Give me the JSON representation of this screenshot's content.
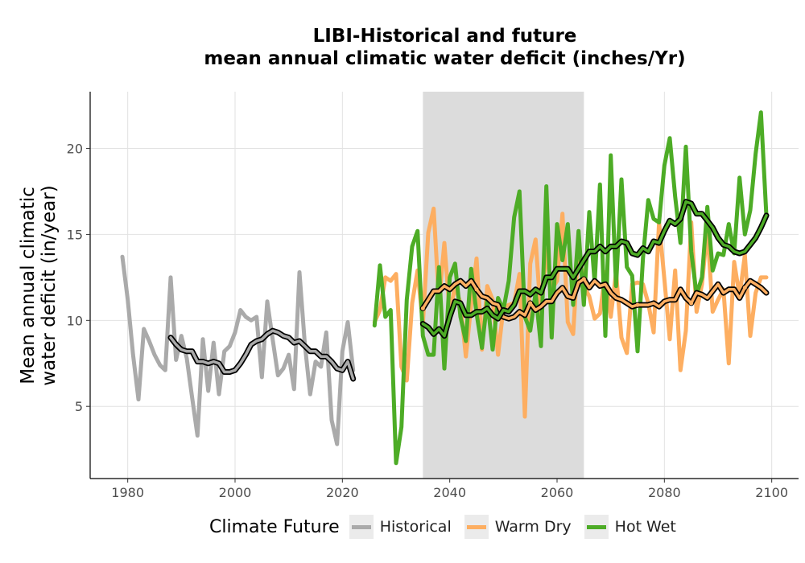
{
  "chart_data": {
    "type": "line",
    "title": [
      "LIBI-Historical and future",
      "mean annual climatic water deficit (inches/Yr)"
    ],
    "ylabel": "Mean annual climatic water deficit (in/year)",
    "ylabel_lines": [
      "Mean annual climatic",
      "water deficit (in/year)"
    ],
    "xlim": [
      1973,
      2105
    ],
    "ylim": [
      0.8,
      23.3
    ],
    "xticks": [
      1980,
      2000,
      2020,
      2040,
      2060,
      2080,
      2100
    ],
    "yticks": [
      5,
      10,
      15,
      20
    ],
    "grid": true,
    "reference_period": [
      2035,
      2065
    ],
    "legend": {
      "title": "Climate Future",
      "placement": "bottom"
    },
    "series": [
      {
        "name": "Historical",
        "color": "#aaaaaa",
        "x": [
          1979,
          1980,
          1981,
          1982,
          1983,
          1984,
          1985,
          1986,
          1987,
          1988,
          1989,
          1990,
          1991,
          1992,
          1993,
          1994,
          1995,
          1996,
          1997,
          1998,
          1999,
          2000,
          2001,
          2002,
          2003,
          2004,
          2005,
          2006,
          2007,
          2008,
          2009,
          2010,
          2011,
          2012,
          2013,
          2014,
          2015,
          2016,
          2017,
          2018,
          2019,
          2020,
          2021,
          2022
        ],
        "y": [
          13.7,
          11.2,
          8.0,
          5.4,
          9.5,
          8.8,
          8.0,
          7.4,
          7.1,
          12.5,
          7.7,
          9.1,
          7.8,
          5.5,
          3.3,
          8.9,
          5.9,
          8.7,
          5.7,
          8.2,
          8.5,
          9.3,
          10.6,
          10.2,
          10.0,
          10.2,
          6.7,
          11.1,
          8.9,
          6.8,
          7.2,
          8.0,
          6.0,
          12.8,
          8.6,
          5.7,
          7.6,
          7.3,
          9.3,
          4.2,
          2.8,
          8.2,
          9.9,
          7.1
        ],
        "smooth_x": [
          1988,
          1989,
          1990,
          1991,
          1992,
          1993,
          1994,
          1995,
          1996,
          1997,
          1998,
          1999,
          2000,
          2001,
          2002,
          2003,
          2004,
          2005,
          2006,
          2007,
          2008,
          2009,
          2010,
          2011,
          2012,
          2013,
          2014,
          2015,
          2016,
          2017,
          2018,
          2019,
          2020,
          2021,
          2022
        ],
        "smooth_y": [
          9.0,
          8.6,
          8.3,
          8.2,
          8.2,
          7.6,
          7.6,
          7.5,
          7.6,
          7.5,
          7.0,
          7.0,
          7.1,
          7.5,
          8.0,
          8.6,
          8.8,
          8.9,
          9.2,
          9.4,
          9.3,
          9.1,
          9.0,
          8.7,
          8.8,
          8.5,
          8.2,
          8.2,
          7.9,
          7.9,
          7.6,
          7.2,
          7.1,
          7.6,
          6.6
        ]
      },
      {
        "name": "Warm Dry",
        "color": "#fdae61",
        "x": [
          2026,
          2027,
          2028,
          2029,
          2030,
          2031,
          2032,
          2033,
          2034,
          2035,
          2036,
          2037,
          2038,
          2039,
          2040,
          2041,
          2042,
          2043,
          2044,
          2045,
          2046,
          2047,
          2048,
          2049,
          2050,
          2051,
          2052,
          2053,
          2054,
          2055,
          2056,
          2057,
          2058,
          2059,
          2060,
          2061,
          2062,
          2063,
          2064,
          2065,
          2066,
          2067,
          2068,
          2069,
          2070,
          2071,
          2072,
          2073,
          2074,
          2075,
          2076,
          2077,
          2078,
          2079,
          2080,
          2081,
          2082,
          2083,
          2084,
          2085,
          2086,
          2087,
          2088,
          2089,
          2090,
          2091,
          2092,
          2093,
          2094,
          2095,
          2096,
          2097,
          2098,
          2099
        ],
        "y": [
          9.9,
          10.6,
          12.5,
          12.3,
          12.7,
          7.3,
          6.5,
          11.0,
          12.9,
          9.8,
          15.1,
          16.5,
          11.1,
          14.5,
          10.4,
          12.0,
          11.0,
          7.9,
          10.9,
          13.6,
          8.3,
          12.0,
          11.2,
          8.0,
          10.7,
          10.9,
          11.0,
          12.7,
          4.4,
          13.3,
          14.7,
          10.2,
          14.1,
          11.8,
          12.3,
          16.2,
          9.9,
          9.2,
          14.4,
          12.0,
          11.4,
          10.1,
          10.4,
          12.8,
          10.2,
          12.8,
          9.0,
          8.1,
          12.1,
          12.2,
          12.1,
          11.0,
          9.3,
          15.7,
          12.4,
          8.9,
          12.9,
          7.1,
          9.4,
          15.7,
          10.5,
          12.1,
          15.3,
          10.5,
          11.2,
          11.8,
          7.5,
          13.4,
          11.4,
          13.8,
          9.1,
          11.6,
          12.5,
          12.5
        ],
        "smooth_x": [
          2035,
          2036,
          2037,
          2038,
          2039,
          2040,
          2041,
          2042,
          2043,
          2044,
          2045,
          2046,
          2047,
          2048,
          2049,
          2050,
          2051,
          2052,
          2053,
          2054,
          2055,
          2056,
          2057,
          2058,
          2059,
          2060,
          2061,
          2062,
          2063,
          2064,
          2065,
          2066,
          2067,
          2068,
          2069,
          2070,
          2071,
          2072,
          2073,
          2074,
          2075,
          2076,
          2077,
          2078,
          2079,
          2080,
          2081,
          2082,
          2083,
          2084,
          2085,
          2086,
          2087,
          2088,
          2089,
          2090,
          2091,
          2092,
          2093,
          2094,
          2095,
          2096,
          2097,
          2098,
          2099
        ],
        "smooth_y": [
          10.7,
          11.2,
          11.7,
          11.7,
          12.0,
          11.8,
          12.1,
          12.3,
          12.0,
          12.3,
          11.8,
          11.4,
          11.3,
          11.0,
          10.9,
          10.2,
          10.1,
          10.2,
          10.5,
          10.3,
          11.0,
          10.6,
          10.8,
          11.1,
          11.1,
          11.6,
          11.9,
          11.4,
          11.3,
          12.2,
          12.4,
          11.9,
          12.3,
          12.0,
          12.1,
          11.6,
          11.3,
          11.2,
          11.0,
          10.8,
          10.9,
          10.9,
          10.9,
          11.0,
          10.8,
          11.1,
          11.2,
          11.2,
          11.8,
          11.3,
          11.0,
          11.6,
          11.5,
          11.3,
          11.7,
          12.1,
          11.6,
          11.8,
          11.8,
          11.3,
          11.9,
          12.3,
          12.1,
          11.9,
          11.6
        ],
        "smooth_points_x": [
          2035,
          2045,
          2055,
          2065,
          2075,
          2085,
          2095
        ],
        "smooth_points_y": [
          10.7,
          11.8,
          11.0,
          12.4,
          10.9,
          11.0,
          11.9
        ]
      },
      {
        "name": "Hot Wet",
        "color": "#4dac26",
        "x": [
          2026,
          2027,
          2028,
          2029,
          2030,
          2031,
          2032,
          2033,
          2034,
          2035,
          2036,
          2037,
          2038,
          2039,
          2040,
          2041,
          2042,
          2043,
          2044,
          2045,
          2046,
          2047,
          2048,
          2049,
          2050,
          2051,
          2052,
          2053,
          2054,
          2055,
          2056,
          2057,
          2058,
          2059,
          2060,
          2061,
          2062,
          2063,
          2064,
          2065,
          2066,
          2067,
          2068,
          2069,
          2070,
          2071,
          2072,
          2073,
          2074,
          2075,
          2076,
          2077,
          2078,
          2079,
          2080,
          2081,
          2082,
          2083,
          2084,
          2085,
          2086,
          2087,
          2088,
          2089,
          2090,
          2091,
          2092,
          2093,
          2094,
          2095,
          2096,
          2097,
          2098,
          2099
        ],
        "y": [
          9.7,
          13.2,
          10.2,
          10.6,
          1.7,
          3.8,
          11.2,
          14.3,
          15.2,
          9.1,
          8.0,
          8.0,
          13.1,
          7.2,
          12.5,
          13.3,
          10.2,
          8.8,
          13.0,
          10.4,
          8.4,
          11.2,
          8.3,
          11.3,
          10.6,
          12.3,
          16.0,
          17.5,
          10.2,
          9.4,
          11.6,
          8.5,
          17.8,
          9.0,
          15.6,
          13.5,
          15.6,
          10.9,
          15.2,
          10.9,
          16.3,
          12.2,
          17.9,
          9.1,
          19.6,
          12.0,
          18.2,
          13.1,
          12.6,
          8.2,
          13.6,
          17.0,
          15.9,
          15.7,
          19.0,
          20.6,
          17.2,
          14.5,
          20.1,
          14.0,
          11.5,
          12.5,
          16.6,
          12.9,
          13.9,
          13.8,
          15.6,
          13.9,
          18.3,
          15.0,
          16.4,
          19.7,
          22.1,
          16.1
        ],
        "smooth_x": [
          2035,
          2036,
          2037,
          2038,
          2039,
          2040,
          2041,
          2042,
          2043,
          2044,
          2045,
          2046,
          2047,
          2048,
          2049,
          2050,
          2051,
          2052,
          2053,
          2054,
          2055,
          2056,
          2057,
          2058,
          2059,
          2060,
          2061,
          2062,
          2063,
          2064,
          2065,
          2066,
          2067,
          2068,
          2069,
          2070,
          2071,
          2072,
          2073,
          2074,
          2075,
          2076,
          2077,
          2078,
          2079,
          2080,
          2081,
          2082,
          2083,
          2084,
          2085,
          2086,
          2087,
          2088,
          2089,
          2090,
          2091,
          2092,
          2093,
          2094,
          2095,
          2096,
          2097,
          2098,
          2099
        ],
        "smooth_y": [
          9.8,
          9.6,
          9.2,
          9.5,
          9.1,
          10.2,
          11.1,
          11.0,
          10.3,
          10.3,
          10.5,
          10.5,
          10.7,
          10.3,
          10.1,
          10.6,
          10.5,
          10.9,
          11.7,
          11.7,
          11.5,
          11.8,
          11.6,
          12.5,
          12.5,
          13.0,
          13.0,
          13.0,
          12.5,
          13.0,
          13.5,
          14.0,
          14.0,
          14.3,
          14.0,
          14.3,
          14.3,
          14.6,
          14.5,
          13.9,
          13.8,
          14.2,
          14.0,
          14.6,
          14.5,
          15.2,
          15.8,
          15.6,
          15.9,
          16.9,
          16.8,
          16.2,
          16.2,
          15.8,
          15.4,
          14.8,
          14.4,
          14.3,
          14.0,
          13.9,
          14.0,
          14.4,
          14.8,
          15.4,
          16.1
        ]
      }
    ]
  }
}
